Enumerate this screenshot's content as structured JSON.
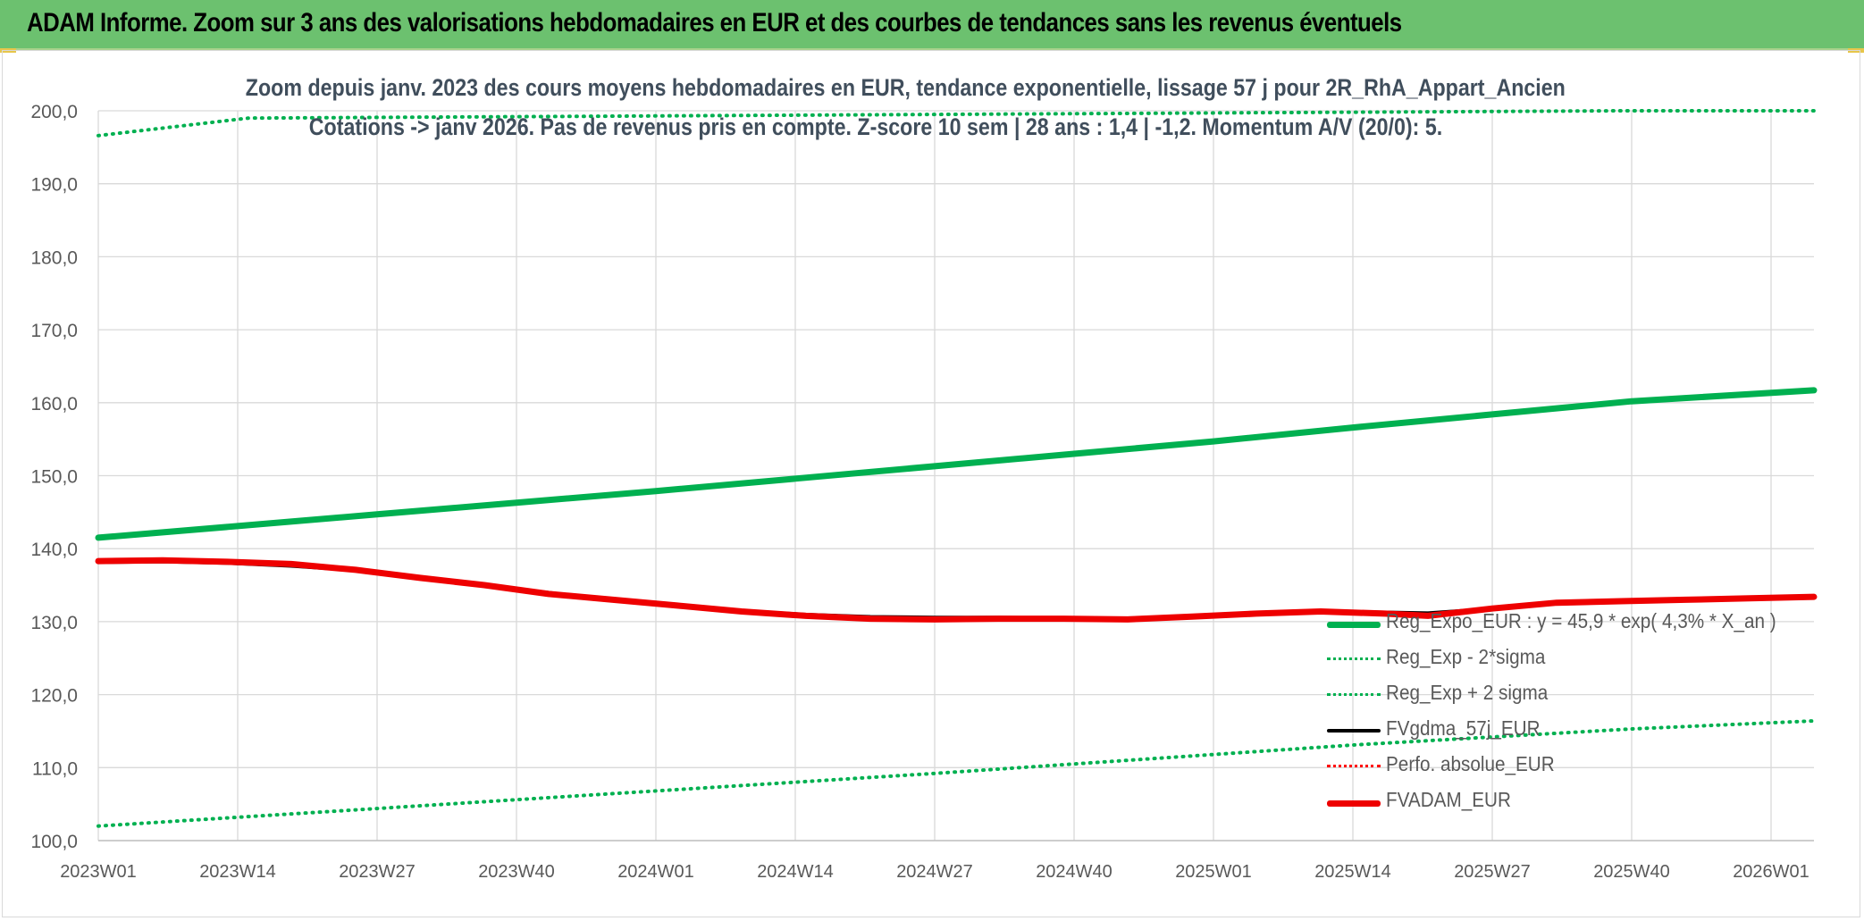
{
  "banner": {
    "title": "ADAM Informe. Zoom sur 3 ans des valorisations hebdomadaires en EUR et des courbes de tendances sans les revenus éventuels"
  },
  "chart_data": {
    "type": "line",
    "title_line1": "Zoom depuis janv. 2023 des cours moyens hebdomadaires en EUR, tendance exponentielle, lissage 57 j pour 2R_RhA_Appart_Ancien",
    "title_line2": "Cotations -> janv 2026. Pas de revenus pris en compte. Z-score 10 sem | 28 ans : 1,4 | -1,2. Momentum A/V (20/0): 5.",
    "xlabel": "",
    "ylabel": "",
    "ylim": [
      100,
      200
    ],
    "ytick_step": 10,
    "ytick_labels": [
      "100,0",
      "110,0",
      "120,0",
      "130,0",
      "140,0",
      "150,0",
      "160,0",
      "170,0",
      "180,0",
      "190,0",
      "200,0"
    ],
    "x_index_range": [
      0,
      160
    ],
    "x_ticks": [
      {
        "index": 0,
        "label": "2023W01"
      },
      {
        "index": 13,
        "label": "2023W14"
      },
      {
        "index": 26,
        "label": "2023W27"
      },
      {
        "index": 39,
        "label": "2023W40"
      },
      {
        "index": 52,
        "label": "2024W01"
      },
      {
        "index": 65,
        "label": "2024W14"
      },
      {
        "index": 78,
        "label": "2024W27"
      },
      {
        "index": 91,
        "label": "2024W40"
      },
      {
        "index": 104,
        "label": "2025W01"
      },
      {
        "index": 117,
        "label": "2025W14"
      },
      {
        "index": 130,
        "label": "2025W27"
      },
      {
        "index": 143,
        "label": "2025W40"
      },
      {
        "index": 156,
        "label": "2026W01"
      }
    ],
    "grid": true,
    "legend_position": "bottom-right",
    "series": [
      {
        "name": "Reg_Expo_EUR : y = 45,9 * exp( 4,3% *  X_an )",
        "color": "#00b050",
        "style": "solid-thick",
        "points": [
          [
            0,
            141.5
          ],
          [
            13,
            143.1
          ],
          [
            26,
            144.7
          ],
          [
            39,
            146.3
          ],
          [
            52,
            147.9
          ],
          [
            65,
            149.6
          ],
          [
            78,
            151.3
          ],
          [
            91,
            153.0
          ],
          [
            104,
            154.7
          ],
          [
            117,
            156.6
          ],
          [
            130,
            158.4
          ],
          [
            143,
            160.2
          ],
          [
            160,
            161.7
          ]
        ]
      },
      {
        "name": "Reg_Exp - 2*sigma",
        "color": "#00b050",
        "style": "dotted",
        "points": [
          [
            0,
            102.0
          ],
          [
            13,
            103.2
          ],
          [
            26,
            104.4
          ],
          [
            39,
            105.6
          ],
          [
            52,
            106.8
          ],
          [
            65,
            108.0
          ],
          [
            78,
            109.2
          ],
          [
            91,
            110.5
          ],
          [
            104,
            111.8
          ],
          [
            117,
            113.1
          ],
          [
            130,
            114.2
          ],
          [
            143,
            115.3
          ],
          [
            160,
            116.4
          ]
        ]
      },
      {
        "name": "Reg_Exp + 2 sigma",
        "color": "#00b050",
        "style": "dotted",
        "points": [
          [
            0,
            196.6
          ],
          [
            14,
            199.0
          ],
          [
            142,
            200.0
          ],
          [
            160,
            200.0
          ]
        ]
      },
      {
        "name": "FVgdma_57j_EUR",
        "color": "#000000",
        "style": "solid",
        "points": [
          [
            0,
            138.1
          ],
          [
            6,
            138.2
          ],
          [
            12,
            138.0
          ],
          [
            18,
            137.6
          ],
          [
            24,
            137.0
          ],
          [
            30,
            136.0
          ],
          [
            36,
            135.0
          ],
          [
            42,
            134.0
          ],
          [
            48,
            133.0
          ],
          [
            54,
            132.2
          ],
          [
            60,
            131.5
          ],
          [
            66,
            131.0
          ],
          [
            72,
            130.7
          ],
          [
            78,
            130.6
          ],
          [
            84,
            130.6
          ],
          [
            90,
            130.5
          ],
          [
            96,
            130.5
          ],
          [
            102,
            130.7
          ],
          [
            108,
            131.2
          ],
          [
            114,
            131.4
          ],
          [
            120,
            131.3
          ],
          [
            124,
            131.2
          ],
          [
            130,
            131.8
          ],
          [
            136,
            132.5
          ],
          [
            142,
            132.8
          ],
          [
            148,
            133.0
          ],
          [
            154,
            133.2
          ],
          [
            160,
            133.4
          ]
        ]
      },
      {
        "name": "Perfo. absolue_EUR",
        "color": "#ff0000",
        "style": "dotted",
        "points": []
      },
      {
        "name": "FVADAM_EUR",
        "color": "#ee0000",
        "style": "solid-thick",
        "points": [
          [
            0,
            138.3
          ],
          [
            6,
            138.4
          ],
          [
            12,
            138.2
          ],
          [
            18,
            137.9
          ],
          [
            24,
            137.1
          ],
          [
            30,
            136.0
          ],
          [
            36,
            135.0
          ],
          [
            42,
            133.8
          ],
          [
            48,
            133.0
          ],
          [
            54,
            132.2
          ],
          [
            60,
            131.4
          ],
          [
            66,
            130.8
          ],
          [
            72,
            130.4
          ],
          [
            78,
            130.3
          ],
          [
            84,
            130.4
          ],
          [
            90,
            130.4
          ],
          [
            96,
            130.3
          ],
          [
            102,
            130.7
          ],
          [
            108,
            131.1
          ],
          [
            114,
            131.4
          ],
          [
            120,
            131.1
          ],
          [
            124,
            130.8
          ],
          [
            130,
            131.8
          ],
          [
            136,
            132.6
          ],
          [
            142,
            132.8
          ],
          [
            148,
            133.0
          ],
          [
            154,
            133.2
          ],
          [
            160,
            133.4
          ]
        ]
      }
    ]
  }
}
